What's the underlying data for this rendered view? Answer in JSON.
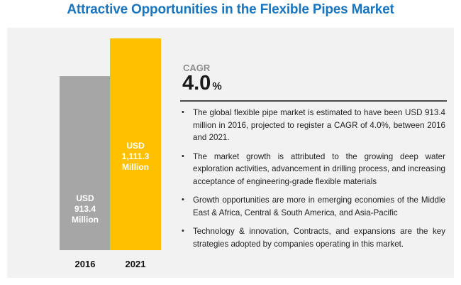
{
  "title": "Attractive Opportunities in the Flexible Pipes Market",
  "colors": {
    "title": "#1b75bc",
    "bar_2016": "#a6a6a6",
    "bar_2021": "#ffc000",
    "panel": "#f2f2f2"
  },
  "cagr": {
    "label": "CAGR",
    "value": "4.0",
    "unit": "%"
  },
  "bullet_icon": "bullet-dot",
  "bullets": [
    "The global flexible pipe market is estimated to have been USD 913.4 million in 2016, projected to register a CAGR of 4.0%, between 2016 and 2021.",
    "The market growth is attributed to the growing deep water exploration activities, advancement in drilling process, and increasing acceptance of engineering-grade flexible materials",
    "Growth opportunities are more in emerging economies of the Middle East & Africa, Central & South America, and Asia-Pacific",
    "Technology & innovation, Contracts, and expansions are the key strategies adopted by companies operating in this market."
  ],
  "chart_data": {
    "type": "bar",
    "categories": [
      "2016",
      "2021"
    ],
    "values": [
      913.4,
      1111.3
    ],
    "data_labels": [
      [
        "USD",
        "913.4",
        "Million"
      ],
      [
        "USD",
        "1,111.3",
        "Million"
      ]
    ],
    "unit": "USD Million",
    "title": "",
    "xlabel": "",
    "ylabel": "",
    "grid": false,
    "legend": "none"
  }
}
